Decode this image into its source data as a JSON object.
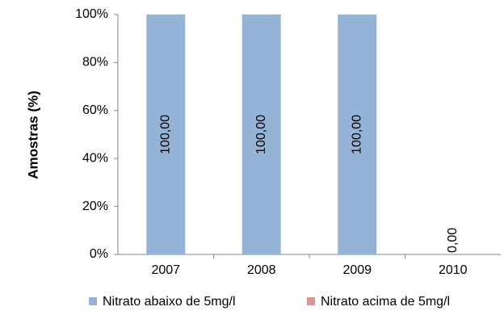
{
  "chart_data": {
    "type": "stacked_bar",
    "y_label": "Amostras (%)",
    "categories": [
      "2007",
      "2008",
      "2009",
      "2010"
    ],
    "series": [
      {
        "name": "Nitrato abaixo de 5mg/l",
        "color": "#95b3d7",
        "values": [
          100,
          100,
          100,
          0
        ],
        "value_labels": [
          "100,00",
          "100,00",
          "100,00",
          "0,00"
        ]
      },
      {
        "name": "Nitrato acima de 5mg/l",
        "color": "#d99694",
        "values": [
          0,
          0,
          0,
          0
        ]
      }
    ],
    "ylim": [
      0,
      100
    ],
    "yticks": [
      {
        "value": 0,
        "label": "0%"
      },
      {
        "value": 20,
        "label": "20%"
      },
      {
        "value": 40,
        "label": "40%"
      },
      {
        "value": 60,
        "label": "60%"
      },
      {
        "value": 80,
        "label": "80%"
      },
      {
        "value": 100,
        "label": "100%"
      }
    ],
    "grid": false,
    "legend": "bottom"
  }
}
